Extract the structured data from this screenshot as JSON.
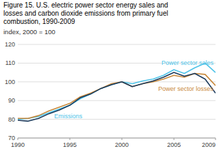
{
  "chart_data": {
    "type": "line",
    "title": [
      "Figure 15. U.S. electric power sector energy sales and",
      "losses and carbon dioxide emissions from primary fuel",
      "combustion, 1990-2009"
    ],
    "subtitle": "index, 2000 = 100",
    "x": [
      1990,
      1991,
      1992,
      1993,
      1994,
      1995,
      1996,
      1997,
      1998,
      1999,
      2000,
      2001,
      2002,
      2003,
      2004,
      2005,
      2006,
      2007,
      2008,
      2009
    ],
    "xlim": [
      1990,
      2009
    ],
    "xticks": [
      1990,
      1995,
      2000,
      2005,
      2009
    ],
    "ylim": [
      70,
      120
    ],
    "yticks": [
      70,
      80,
      90,
      100,
      110,
      120
    ],
    "grid": true,
    "series": [
      {
        "color": "#4dc3e8",
        "values": [
          80.0,
          80.5,
          81.5,
          83.5,
          85.5,
          87.5,
          91.0,
          93.5,
          96.5,
          98.5,
          100.0,
          99.0,
          100.5,
          101.5,
          103.5,
          106.5,
          104.5,
          107.5,
          110.0,
          105.0
        ]
      },
      {
        "color": "#c8883a",
        "values": [
          80.5,
          80.5,
          82.0,
          84.5,
          86.5,
          88.5,
          92.0,
          94.0,
          96.5,
          99.0,
          100.0,
          97.5,
          99.0,
          100.0,
          101.5,
          103.5,
          102.5,
          104.5,
          104.0,
          98.0
        ]
      },
      {
        "color": "#1a3a5c",
        "values": [
          79.5,
          79.0,
          80.5,
          83.0,
          85.0,
          87.5,
          91.5,
          93.5,
          96.5,
          98.5,
          100.0,
          97.5,
          99.0,
          100.5,
          102.5,
          105.0,
          103.0,
          104.5,
          101.5,
          94.0
        ]
      }
    ],
    "annotations": [
      {
        "text": "Power sector sales",
        "x": 2003.8,
        "y": 109.0,
        "color": "#4dc3e8"
      },
      {
        "text": "Power sector losses",
        "x": 2003.5,
        "y": 95.2,
        "color": "#c8883a"
      },
      {
        "text": "Emissions",
        "x": 1993.5,
        "y": 80.5,
        "color": "#4dc3e8"
      }
    ]
  }
}
